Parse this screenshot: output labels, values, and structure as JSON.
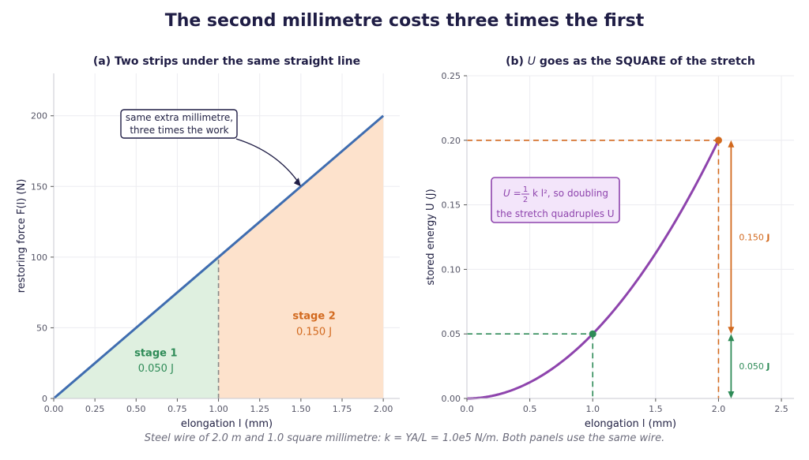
{
  "suptitle": "The second millimetre costs three times the first",
  "caption": "Steel wire of 2.0 m and 1.0 square millimetre: k = YA/L = 1.0e5 N/m. Both panels use the same wire.",
  "colors": {
    "line": "#3f6db0",
    "curve": "#8e44ad",
    "stage1": "#2e8b57",
    "stage2": "#d2691e",
    "stage1_fill": "#dff0e0",
    "stage2_fill": "#fde2cc"
  },
  "chart_data": [
    {
      "type": "area",
      "title": "(a) Two strips under the same straight line",
      "xlabel": "elongation  l  (mm)",
      "ylabel": "restoring force  F(l)  (N)",
      "xlim": [
        0,
        2.1
      ],
      "ylim": [
        0,
        230
      ],
      "xticks": [
        "0.00",
        "0.25",
        "0.50",
        "0.75",
        "1.00",
        "1.25",
        "1.50",
        "1.75",
        "2.00"
      ],
      "yticks": [
        "0",
        "50",
        "100",
        "150",
        "200"
      ],
      "grid": true,
      "series": [
        {
          "x": [
            0,
            2.0
          ],
          "y": [
            0,
            200
          ]
        }
      ],
      "regions": [
        {
          "name": "stage 1",
          "value_label": "0.050 J",
          "x_from": 0,
          "x_to": 1.0
        },
        {
          "name": "stage 2",
          "value_label": "0.150 J",
          "x_from": 1.0,
          "x_to": 2.0
        }
      ],
      "annotation": {
        "text": [
          "same extra millimetre,",
          "three times the work"
        ],
        "points_to": [
          1.5,
          150
        ]
      }
    },
    {
      "type": "line",
      "title_prefix": "(b) ",
      "title_var": "U",
      "title_suffix": " goes as the SQUARE of the stretch",
      "xlabel": "elongation  l  (mm)",
      "ylabel": "stored energy  U  (J)",
      "xlim": [
        0,
        2.6
      ],
      "ylim": [
        0,
        0.25
      ],
      "xticks": [
        "0.0",
        "0.5",
        "1.0",
        "1.5",
        "2.0",
        "2.5"
      ],
      "yticks": [
        "0.00",
        "0.05",
        "0.10",
        "0.15",
        "0.20",
        "0.25"
      ],
      "grid": true,
      "series": [
        {
          "x": [
            0,
            0.25,
            0.5,
            0.75,
            1.0,
            1.25,
            1.5,
            1.75,
            2.0
          ],
          "y": [
            0,
            0.003125,
            0.0125,
            0.028125,
            0.05,
            0.078125,
            0.1125,
            0.153125,
            0.2
          ]
        }
      ],
      "markers": [
        {
          "x": 1.0,
          "y": 0.05
        },
        {
          "x": 2.0,
          "y": 0.2
        }
      ],
      "deltas": [
        {
          "label": "0.050 J",
          "from": 0,
          "to": 0.05
        },
        {
          "label": "0.150 J",
          "from": 0.05,
          "to": 0.2
        }
      ],
      "formula_box": {
        "line1_prefix": "U = ",
        "frac_num": "1",
        "frac_den": "2",
        "line1_suffix": "k l², so doubling",
        "line2": "the stretch quadruples U"
      }
    }
  ]
}
